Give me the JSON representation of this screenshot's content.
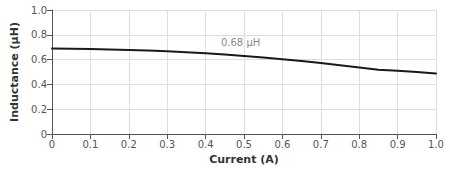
{
  "chart_data": {
    "type": "line",
    "xlabel": "Current (A)",
    "ylabel": "Inductance (μH)",
    "x": [
      0.0,
      0.05,
      0.1,
      0.15,
      0.2,
      0.25,
      0.3,
      0.35,
      0.4,
      0.45,
      0.5,
      0.55,
      0.6,
      0.65,
      0.7,
      0.75,
      0.8,
      0.85,
      0.9,
      0.95,
      1.0
    ],
    "values": [
      0.69,
      0.688,
      0.685,
      0.682,
      0.678,
      0.673,
      0.667,
      0.66,
      0.651,
      0.641,
      0.63,
      0.617,
      0.603,
      0.588,
      0.572,
      0.555,
      0.537,
      0.519,
      0.511,
      0.5,
      0.488
    ],
    "color": "#1a1a1a",
    "xlim": [
      0,
      1.0
    ],
    "ylim": [
      0,
      1.0
    ],
    "xticks": [
      0,
      0.1,
      0.2,
      0.3,
      0.4,
      0.5,
      0.6,
      0.7,
      0.8,
      0.9,
      {
        "value": 1.0,
        "label": "1.0"
      }
    ],
    "yticks": [
      0,
      0.2,
      0.4,
      0.6,
      0.8,
      {
        "value": 1.0,
        "label": "1.0"
      }
    ],
    "grid": true,
    "annotations": [
      {
        "text": "0.68 μH",
        "x": 0.44,
        "y": 0.695
      }
    ]
  }
}
